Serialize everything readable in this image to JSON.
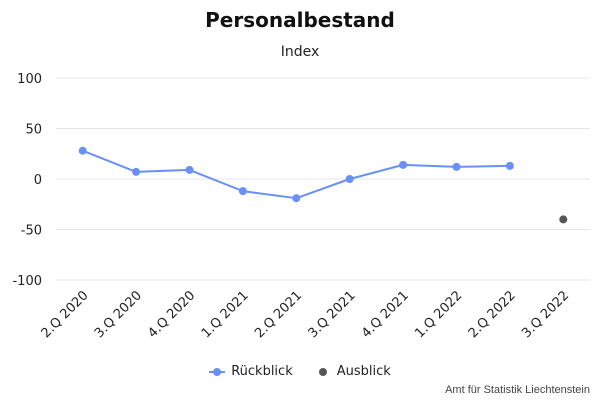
{
  "chart_data": {
    "type": "line",
    "title": "Personalbestand",
    "subtitle": "Index",
    "categories": [
      "2.Q 2020",
      "3.Q 2020",
      "4.Q 2020",
      "1.Q 2021",
      "2.Q 2021",
      "3.Q 2021",
      "4.Q 2021",
      "1.Q 2022",
      "2.Q 2022",
      "3.Q 2022"
    ],
    "ylim": [
      -100,
      100
    ],
    "yticks": [
      100,
      50,
      0,
      -50,
      -100
    ],
    "series": [
      {
        "name": "Rückblick",
        "color": "#6990f7",
        "values": [
          28,
          7,
          9,
          -12,
          -19,
          0,
          14,
          12,
          13,
          null
        ]
      },
      {
        "name": "Ausblick",
        "color": "#555555",
        "values": [
          null,
          null,
          null,
          null,
          null,
          null,
          null,
          null,
          null,
          -40
        ]
      }
    ],
    "legend_position": "bottom",
    "grid": true
  },
  "credits": "Amt für Statistik Liechtenstein"
}
